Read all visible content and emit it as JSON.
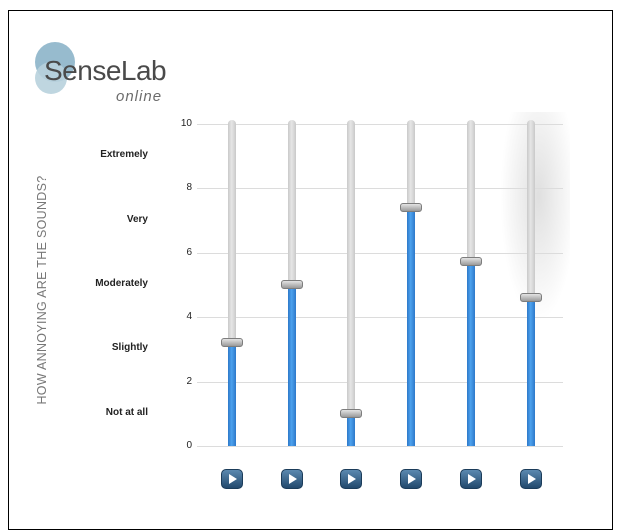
{
  "logo": {
    "name": "SenseLab",
    "sub": "online"
  },
  "question": "HOW ANNOYING ARE THE SOUNDS?",
  "scale_labels": [
    {
      "text": "Extremely",
      "value": 9
    },
    {
      "text": "Very",
      "value": 7
    },
    {
      "text": "Moderately",
      "value": 5
    },
    {
      "text": "Slightly",
      "value": 3
    },
    {
      "text": "Not at all",
      "value": 1
    }
  ],
  "ticks": [
    "10",
    "8",
    "6",
    "4",
    "2",
    "0"
  ],
  "tick_values": [
    10,
    8,
    6,
    4,
    2,
    0
  ],
  "range": [
    0,
    10
  ],
  "sliders": [
    {
      "value": 3.2
    },
    {
      "value": 5.0
    },
    {
      "value": 1.0
    },
    {
      "value": 7.4
    },
    {
      "value": 5.7
    },
    {
      "value": 4.6
    }
  ],
  "colors": {
    "fill": "#3a8de0",
    "track": "#d6d6d6",
    "play": "#2f5b82"
  },
  "icons": {
    "play": "play-icon"
  }
}
